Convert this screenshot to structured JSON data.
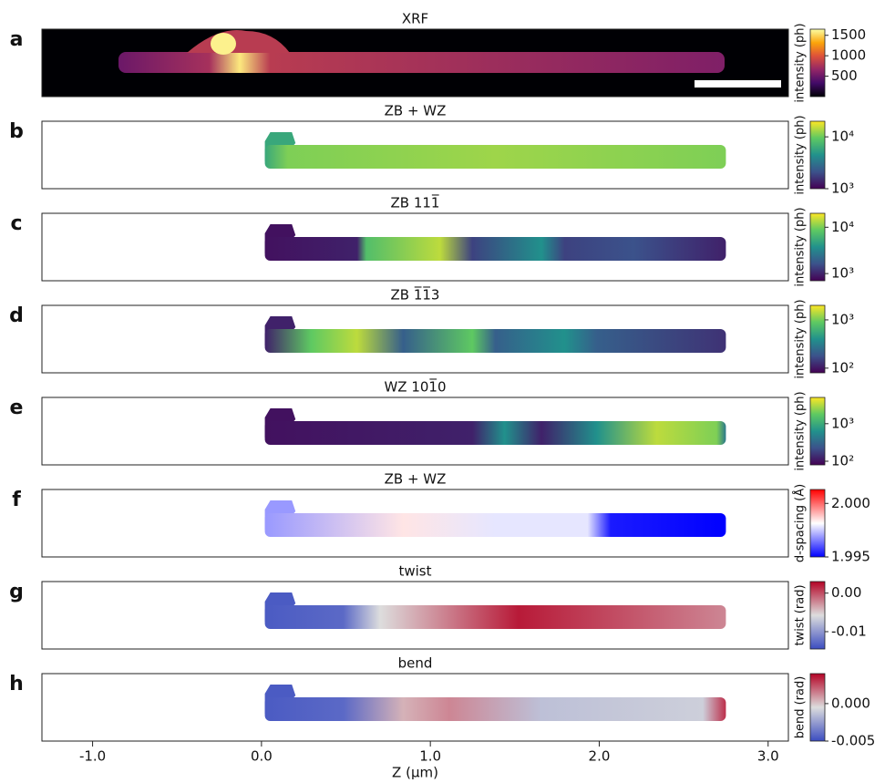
{
  "chart_data": [
    {
      "type": "heatmap",
      "label": "a",
      "title": "XRF",
      "colorbar": {
        "label": "intensity (ph)",
        "log": false,
        "lim": [
          0,
          1650
        ],
        "ticks": [
          500,
          1000,
          1500
        ],
        "colors": [
          "#000004",
          "#420a68",
          "#932667",
          "#dd513a",
          "#fca50a",
          "#fcffa4"
        ]
      }
    },
    {
      "type": "heatmap",
      "label": "b",
      "title": "ZB + WZ",
      "colorbar": {
        "label": "intensity (ph)",
        "log": true,
        "lim": [
          1000,
          20000
        ],
        "ticks": [
          {
            "value": 1000,
            "label": "10³"
          },
          {
            "value": 10000,
            "label": "10⁴"
          }
        ],
        "colors": [
          "#440154",
          "#3b528b",
          "#21918c",
          "#5ec962",
          "#fde725"
        ]
      }
    },
    {
      "type": "heatmap",
      "label": "c",
      "title": "ZB 111̅",
      "colorbar": {
        "label": "intensity (ph)",
        "log": true,
        "lim": [
          700,
          20000
        ],
        "ticks": [
          {
            "value": 1000,
            "label": "10³"
          },
          {
            "value": 10000,
            "label": "10⁴"
          }
        ],
        "colors": [
          "#440154",
          "#3b528b",
          "#21918c",
          "#5ec962",
          "#fde725"
        ]
      }
    },
    {
      "type": "heatmap",
      "label": "d",
      "title": "ZB 1̅1̅3",
      "colorbar": {
        "label": "intensity (ph)",
        "log": true,
        "lim": [
          80,
          2000
        ],
        "ticks": [
          {
            "value": 100,
            "label": "10²"
          },
          {
            "value": 1000,
            "label": "10³"
          }
        ],
        "colors": [
          "#440154",
          "#3b528b",
          "#21918c",
          "#5ec962",
          "#fde725"
        ]
      }
    },
    {
      "type": "heatmap",
      "label": "e",
      "title": "WZ 101̅0",
      "colorbar": {
        "label": "intensity (ph)",
        "log": true,
        "lim": [
          80,
          5000
        ],
        "ticks": [
          {
            "value": 100,
            "label": "10²"
          },
          {
            "value": 1000,
            "label": "10³"
          }
        ],
        "colors": [
          "#440154",
          "#3b528b",
          "#21918c",
          "#5ec962",
          "#fde725"
        ]
      }
    },
    {
      "type": "heatmap",
      "label": "f",
      "title": "ZB + WZ",
      "colorbar": {
        "label": "d-spacing (Å)",
        "log": false,
        "lim": [
          1.995,
          2.0013
        ],
        "ticks": [
          1.995,
          {
            "value": 2.0,
            "label": "2.000"
          }
        ],
        "colors": [
          "#0000ff",
          "#ffffff",
          "#ff0000"
        ]
      }
    },
    {
      "type": "heatmap",
      "label": "g",
      "title": "twist",
      "colorbar": {
        "label": "twist (rad)",
        "log": false,
        "lim": [
          -0.0145,
          0.003
        ],
        "ticks": [
          -0.01,
          {
            "value": 0,
            "label": "0.00"
          }
        ],
        "colors": [
          "#3b4cc0",
          "#dddddd",
          "#b40426"
        ]
      }
    },
    {
      "type": "heatmap",
      "label": "h",
      "title": "bend",
      "colorbar": {
        "label": "bend (rad)",
        "log": false,
        "lim": [
          -0.005,
          0.004
        ],
        "ticks": [
          -0.005,
          {
            "value": 0,
            "label": "0.000"
          }
        ],
        "colors": [
          "#3b4cc0",
          "#dddddd",
          "#b40426"
        ]
      },
      "xlabel": "Z (μm)",
      "xlim": [
        -1.3,
        3.12
      ],
      "xticks": [
        {
          "value": -1,
          "label": "-1.0"
        },
        {
          "value": 0,
          "label": "0.0"
        },
        {
          "value": 1,
          "label": "1.0"
        },
        {
          "value": 2,
          "label": "2.0"
        },
        {
          "value": 3,
          "label": "3.0"
        }
      ]
    }
  ]
}
